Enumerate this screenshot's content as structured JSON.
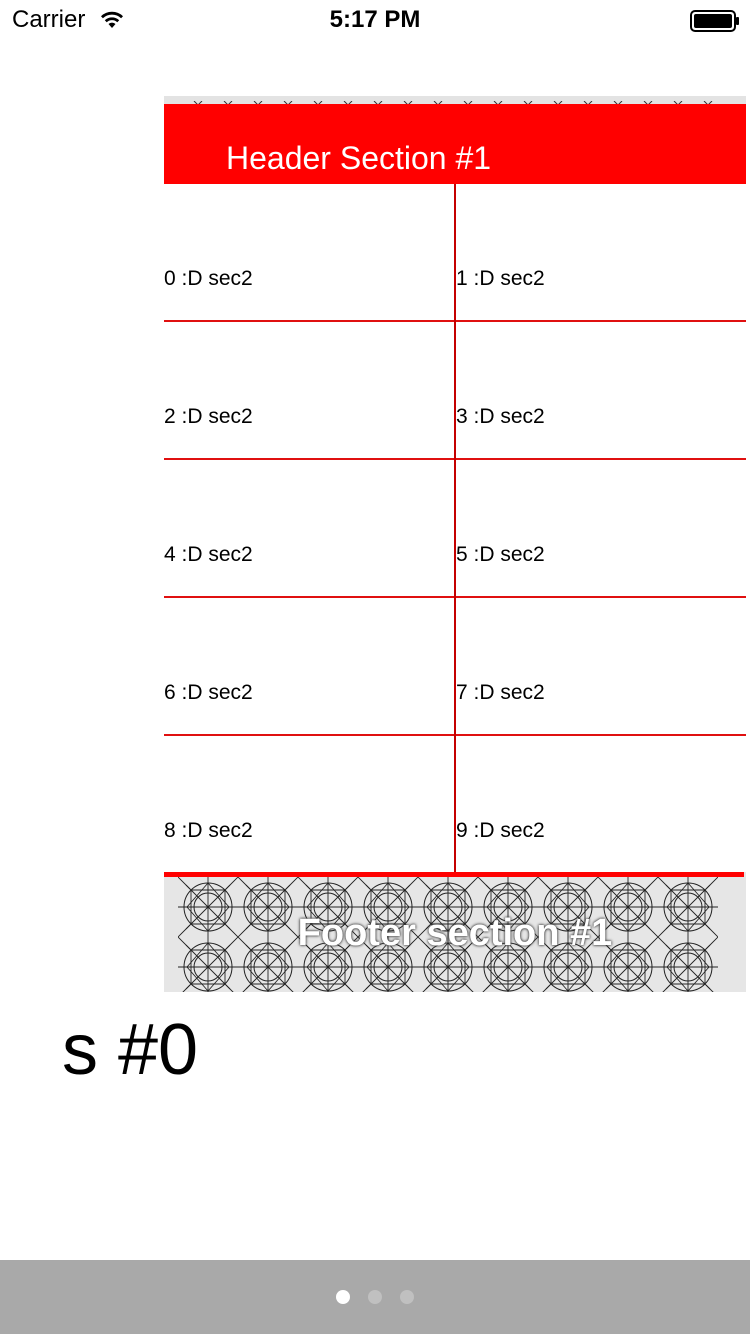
{
  "status_bar": {
    "carrier": "Carrier",
    "time": "5:17 PM",
    "wifi_icon": "wifi-icon",
    "battery_icon": "battery-icon"
  },
  "collection": {
    "header_title": "Header Section #1",
    "cells": [
      "0 :D sec2",
      "1 :D sec2",
      "2 :D sec2",
      "3 :D sec2",
      "4 :D sec2",
      "5 :D sec2",
      "6 :D sec2",
      "7 :D sec2",
      "8 :D sec2",
      "9 :D sec2"
    ],
    "footer_title": "Footer section #1"
  },
  "page_title": "s #0",
  "page_control": {
    "pages": 3,
    "current_page": 1
  },
  "colors": {
    "header_background": "#ff0000",
    "grid_lines": "#e01010",
    "page_bar_background": "#a9a9a9"
  }
}
